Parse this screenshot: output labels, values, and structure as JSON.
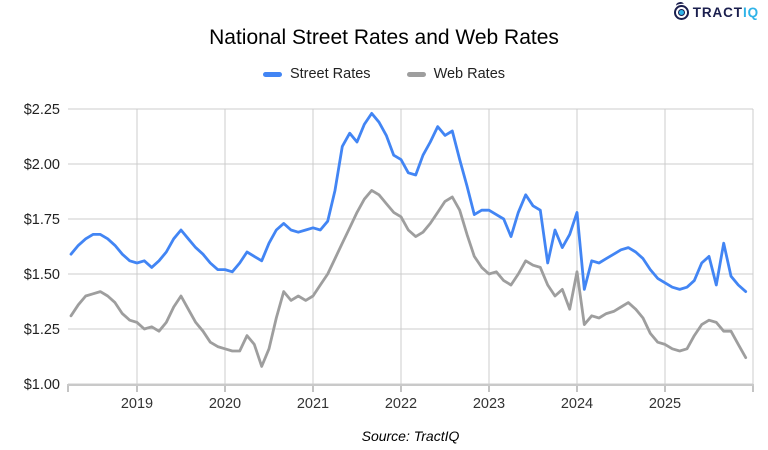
{
  "logo": {
    "icon": "tractiq-target-icon",
    "text_primary": "TRACT",
    "text_secondary": "IQ"
  },
  "title": "National Street Rates and Web Rates",
  "legend": [
    {
      "label": "Street Rates",
      "color": "#4285f4"
    },
    {
      "label": "Web Rates",
      "color": "#9e9e9e"
    }
  ],
  "source": "Source: TractIQ",
  "colors": {
    "street": "#4285f4",
    "web": "#9e9e9e",
    "gridline": "#cccccc",
    "axis_line": "#c9c9c9",
    "tick": "#888888",
    "axis_label": "#333333",
    "y_label": "#222222"
  },
  "chart_data": {
    "type": "line",
    "title": "National Street Rates and Web Rates",
    "x_start": "2018-04",
    "x_interval": "monthly",
    "x_tick_labels": [
      "2019",
      "2020",
      "2021",
      "2022",
      "2023",
      "2024",
      "2025"
    ],
    "y_ticks": [
      2.25,
      2.0,
      1.75,
      1.5,
      1.25,
      1.0
    ],
    "y_tick_labels": [
      "$2.25",
      "$2.00",
      "$1.75",
      "$1.50",
      "$1.25",
      "$1.00"
    ],
    "ylim": [
      1.0,
      2.25
    ],
    "grid": true,
    "legend_position": "top",
    "series": [
      {
        "name": "Street Rates",
        "color": "#4285f4",
        "values": [
          1.59,
          1.63,
          1.66,
          1.68,
          1.68,
          1.66,
          1.63,
          1.59,
          1.56,
          1.55,
          1.56,
          1.53,
          1.56,
          1.6,
          1.66,
          1.7,
          1.66,
          1.62,
          1.59,
          1.55,
          1.52,
          1.52,
          1.51,
          1.55,
          1.6,
          1.58,
          1.56,
          1.64,
          1.7,
          1.73,
          1.7,
          1.69,
          1.7,
          1.71,
          1.7,
          1.74,
          1.88,
          2.08,
          2.14,
          2.1,
          2.18,
          2.23,
          2.19,
          2.13,
          2.04,
          2.02,
          1.96,
          1.95,
          2.04,
          2.1,
          2.17,
          2.13,
          2.15,
          2.02,
          1.9,
          1.77,
          1.79,
          1.79,
          1.77,
          1.75,
          1.67,
          1.78,
          1.86,
          1.81,
          1.79,
          1.55,
          1.7,
          1.62,
          1.68,
          1.78,
          1.43,
          1.56,
          1.55,
          1.57,
          1.59,
          1.61,
          1.62,
          1.6,
          1.57,
          1.52,
          1.48,
          1.46,
          1.44,
          1.43,
          1.44,
          1.47,
          1.55,
          1.58,
          1.45,
          1.64,
          1.49,
          1.45,
          1.42
        ]
      },
      {
        "name": "Web Rates",
        "color": "#9e9e9e",
        "values": [
          1.31,
          1.36,
          1.4,
          1.41,
          1.42,
          1.4,
          1.37,
          1.32,
          1.29,
          1.28,
          1.25,
          1.26,
          1.24,
          1.28,
          1.35,
          1.4,
          1.34,
          1.28,
          1.24,
          1.19,
          1.17,
          1.16,
          1.15,
          1.15,
          1.22,
          1.18,
          1.08,
          1.16,
          1.3,
          1.42,
          1.38,
          1.4,
          1.38,
          1.4,
          1.45,
          1.5,
          1.57,
          1.64,
          1.71,
          1.78,
          1.84,
          1.88,
          1.86,
          1.82,
          1.78,
          1.76,
          1.7,
          1.67,
          1.69,
          1.73,
          1.78,
          1.83,
          1.85,
          1.79,
          1.68,
          1.58,
          1.53,
          1.5,
          1.51,
          1.47,
          1.45,
          1.5,
          1.56,
          1.54,
          1.53,
          1.45,
          1.4,
          1.43,
          1.34,
          1.51,
          1.27,
          1.31,
          1.3,
          1.32,
          1.33,
          1.35,
          1.37,
          1.34,
          1.3,
          1.23,
          1.19,
          1.18,
          1.16,
          1.15,
          1.16,
          1.22,
          1.27,
          1.29,
          1.28,
          1.24,
          1.24,
          1.18,
          1.12
        ]
      }
    ]
  }
}
